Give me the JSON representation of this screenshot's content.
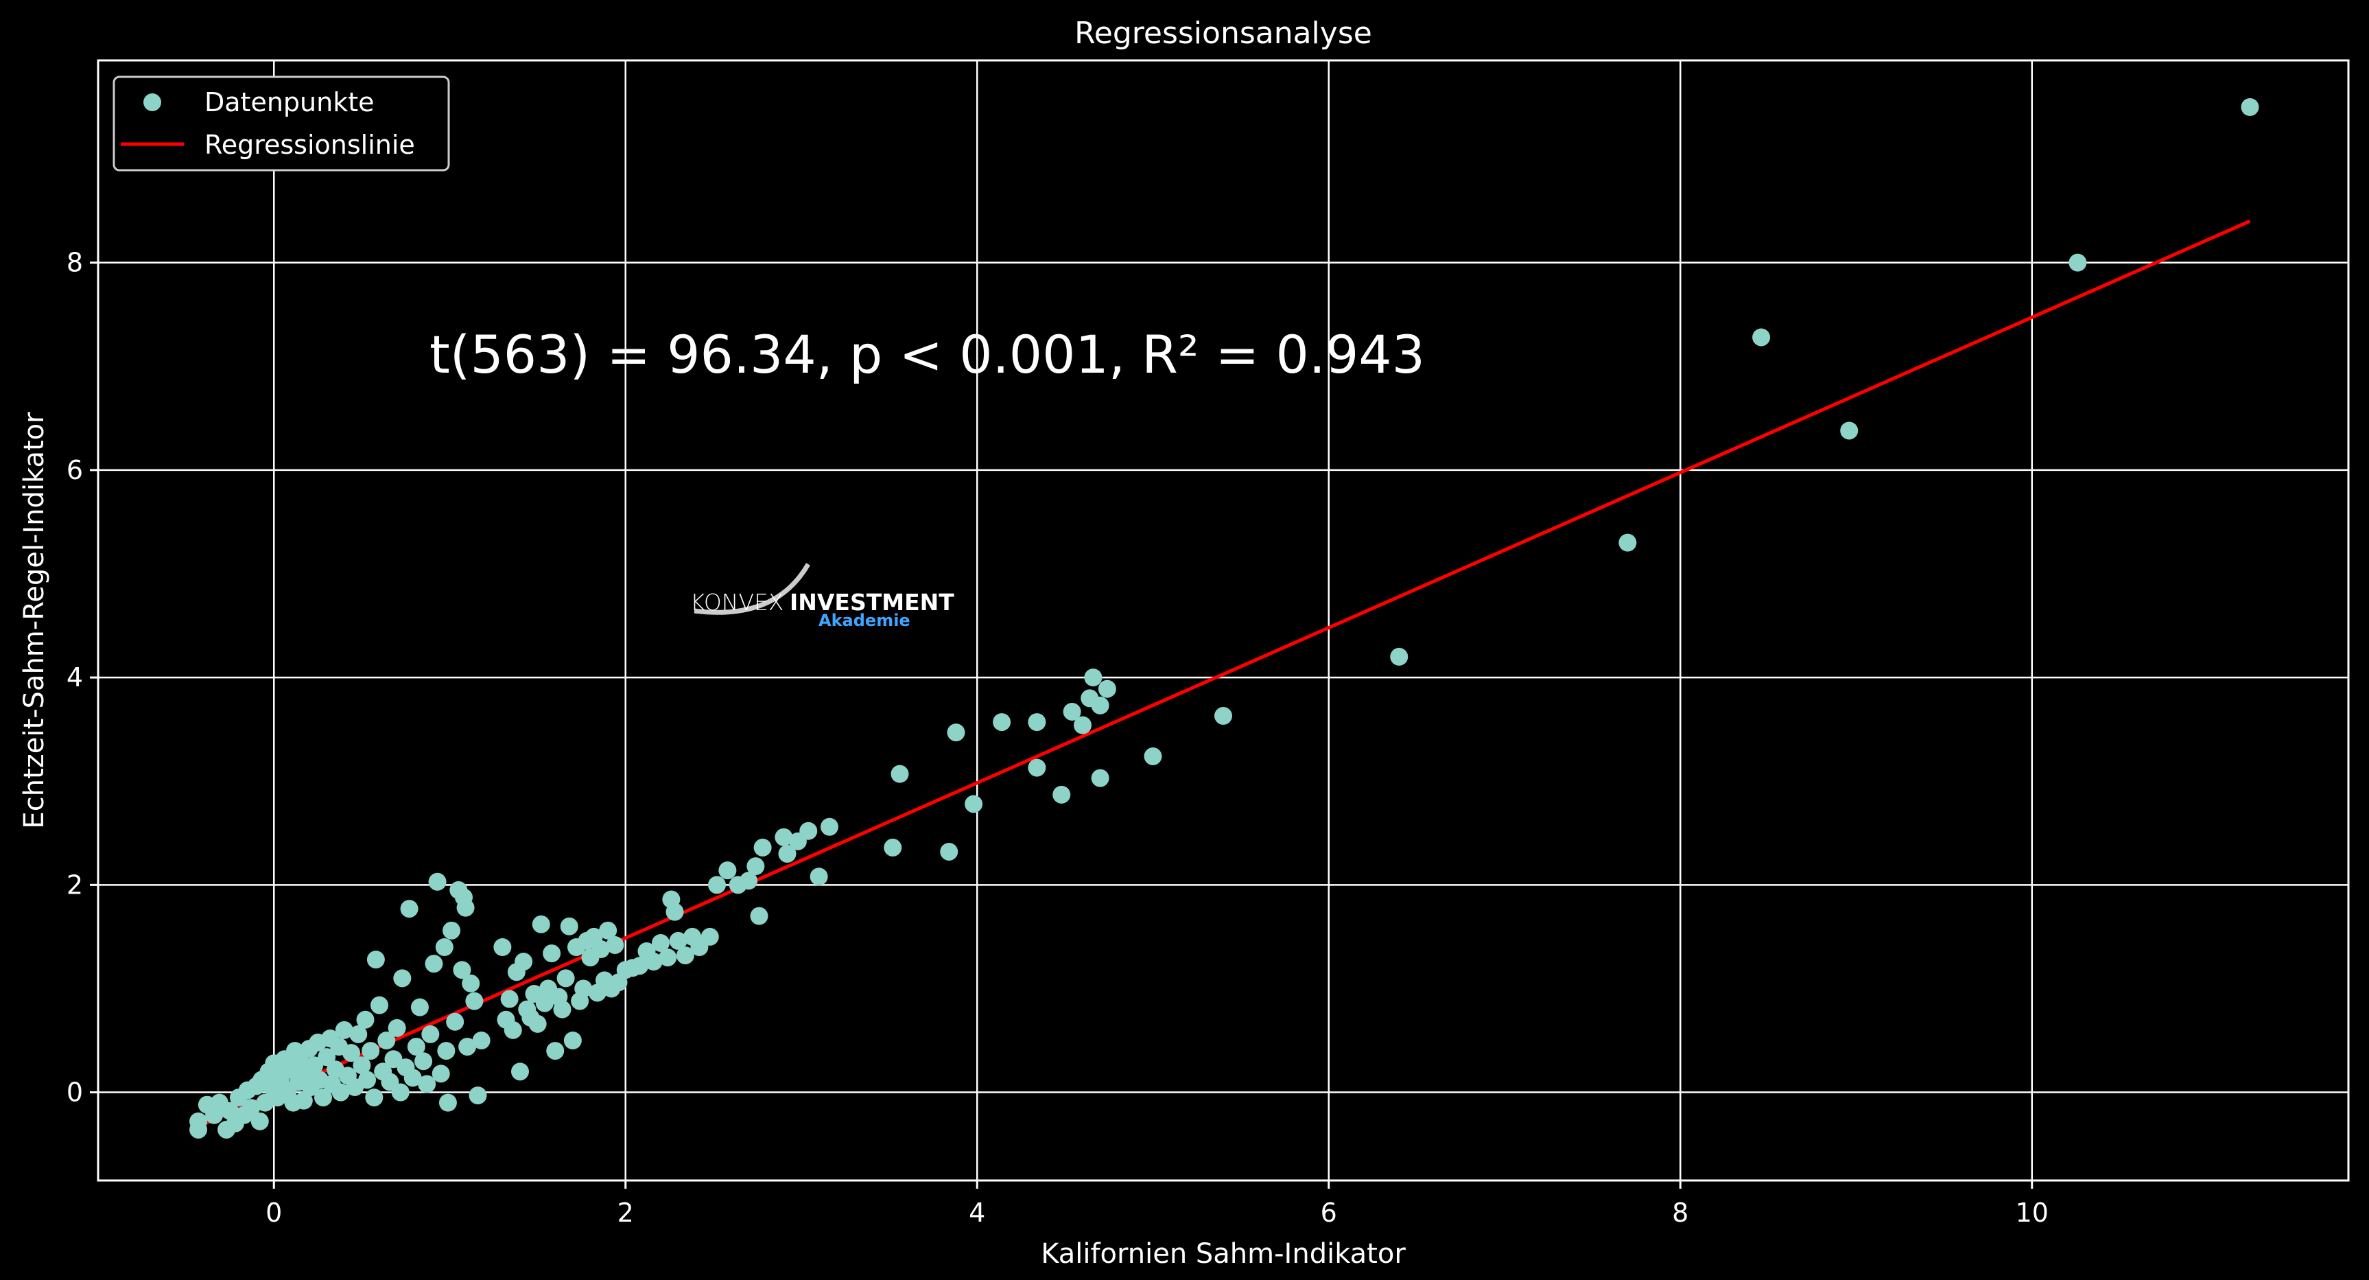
{
  "colors": {
    "background": "#000000",
    "grid": "#ffffff",
    "points": "#8dd3c7",
    "line": "#ff0000",
    "text": "#ffffff",
    "logo_accent": "#3ea6ff"
  },
  "logo": {
    "name": "konvex-investment-logo",
    "text_left": "KONVEX",
    "text_right": "INVESTMENT",
    "subtext": "Akademie"
  },
  "chart_data": {
    "type": "scatter",
    "title": "Regressionsanalyse",
    "xlabel": "Kalifornien Sahm-Indikator",
    "ylabel": "Echtzeit-Sahm-Regel-Indikator",
    "xlim": [
      -1.0,
      11.8
    ],
    "ylim": [
      -0.85,
      9.95
    ],
    "xticks": [
      0,
      2,
      4,
      6,
      8,
      10
    ],
    "yticks": [
      0,
      2,
      4,
      6,
      8
    ],
    "grid": true,
    "legend_position": "top-left",
    "annotation": "t(563) = 96.34, p < 0.001, R² = 0.943",
    "series": [
      {
        "name": "Datenpunkte",
        "kind": "scatter",
        "color": "#8dd3c7",
        "points": [
          [
            -0.43,
            -0.28
          ],
          [
            -0.43,
            -0.36
          ],
          [
            -0.38,
            -0.12
          ],
          [
            -0.34,
            -0.22
          ],
          [
            -0.31,
            -0.1
          ],
          [
            -0.27,
            -0.36
          ],
          [
            -0.25,
            -0.18
          ],
          [
            -0.22,
            -0.3
          ],
          [
            -0.2,
            -0.05
          ],
          [
            -0.17,
            -0.22
          ],
          [
            -0.15,
            0.02
          ],
          [
            -0.13,
            -0.15
          ],
          [
            -0.1,
            0.06
          ],
          [
            -0.08,
            -0.28
          ],
          [
            -0.07,
            0.12
          ],
          [
            -0.05,
            -0.1
          ],
          [
            -0.03,
            0.2
          ],
          [
            -0.01,
            0.05
          ],
          [
            0.0,
            0.28
          ],
          [
            0.02,
            -0.05
          ],
          [
            0.04,
            0.14
          ],
          [
            0.06,
            0.32
          ],
          [
            0.08,
            0.02
          ],
          [
            0.09,
            0.22
          ],
          [
            0.11,
            -0.1
          ],
          [
            0.12,
            0.4
          ],
          [
            0.14,
            0.1
          ],
          [
            0.15,
            0.3
          ],
          [
            0.17,
            -0.08
          ],
          [
            0.18,
            0.18
          ],
          [
            0.2,
            0.42
          ],
          [
            0.21,
            0.05
          ],
          [
            0.23,
            0.26
          ],
          [
            0.25,
            0.48
          ],
          [
            0.26,
            0.12
          ],
          [
            0.28,
            -0.05
          ],
          [
            0.3,
            0.34
          ],
          [
            0.32,
            0.52
          ],
          [
            0.33,
            0.08
          ],
          [
            0.35,
            0.22
          ],
          [
            0.37,
            0.44
          ],
          [
            0.38,
            0.0
          ],
          [
            0.4,
            0.6
          ],
          [
            0.42,
            0.16
          ],
          [
            0.44,
            0.38
          ],
          [
            0.46,
            0.05
          ],
          [
            0.48,
            0.56
          ],
          [
            0.5,
            0.26
          ],
          [
            0.52,
            0.7
          ],
          [
            0.53,
            0.12
          ],
          [
            0.55,
            0.4
          ],
          [
            0.57,
            -0.05
          ],
          [
            0.58,
            1.28
          ],
          [
            0.6,
            0.84
          ],
          [
            0.62,
            0.2
          ],
          [
            0.64,
            0.5
          ],
          [
            0.66,
            0.1
          ],
          [
            0.68,
            0.32
          ],
          [
            0.7,
            0.62
          ],
          [
            0.72,
            0.0
          ],
          [
            0.73,
            1.1
          ],
          [
            0.75,
            0.24
          ],
          [
            0.77,
            1.77
          ],
          [
            0.79,
            0.14
          ],
          [
            0.81,
            0.44
          ],
          [
            0.83,
            0.82
          ],
          [
            0.85,
            0.3
          ],
          [
            0.87,
            0.08
          ],
          [
            0.89,
            0.56
          ],
          [
            0.91,
            1.24
          ],
          [
            0.93,
            2.03
          ],
          [
            0.95,
            0.18
          ],
          [
            0.97,
            1.4
          ],
          [
            0.98,
            0.4
          ],
          [
            0.99,
            -0.1
          ],
          [
            1.01,
            1.56
          ],
          [
            1.03,
            0.68
          ],
          [
            1.05,
            1.95
          ],
          [
            1.07,
            1.18
          ],
          [
            1.08,
            1.88
          ],
          [
            1.09,
            1.78
          ],
          [
            1.1,
            0.44
          ],
          [
            1.12,
            1.05
          ],
          [
            1.14,
            0.88
          ],
          [
            1.16,
            -0.03
          ],
          [
            1.18,
            0.5
          ],
          [
            1.3,
            1.4
          ],
          [
            1.32,
            0.7
          ],
          [
            1.34,
            0.9
          ],
          [
            1.36,
            0.6
          ],
          [
            1.38,
            1.16
          ],
          [
            1.4,
            0.2
          ],
          [
            1.42,
            1.26
          ],
          [
            1.44,
            0.8
          ],
          [
            1.46,
            0.72
          ],
          [
            1.48,
            0.95
          ],
          [
            1.5,
            0.66
          ],
          [
            1.52,
            1.62
          ],
          [
            1.54,
            0.86
          ],
          [
            1.56,
            1.0
          ],
          [
            1.58,
            1.34
          ],
          [
            1.6,
            0.4
          ],
          [
            1.62,
            0.92
          ],
          [
            1.64,
            0.8
          ],
          [
            1.66,
            1.1
          ],
          [
            1.68,
            1.6
          ],
          [
            1.7,
            0.5
          ],
          [
            1.72,
            1.4
          ],
          [
            1.74,
            0.88
          ],
          [
            1.76,
            1.0
          ],
          [
            1.78,
            1.46
          ],
          [
            1.8,
            1.3
          ],
          [
            1.82,
            1.5
          ],
          [
            1.84,
            0.96
          ],
          [
            1.86,
            1.38
          ],
          [
            1.88,
            1.08
          ],
          [
            1.9,
            1.56
          ],
          [
            1.92,
            1.0
          ],
          [
            1.94,
            1.42
          ],
          [
            1.96,
            1.06
          ],
          [
            2.0,
            1.18
          ],
          [
            2.04,
            1.2
          ],
          [
            2.08,
            1.22
          ],
          [
            2.12,
            1.36
          ],
          [
            2.16,
            1.26
          ],
          [
            2.2,
            1.44
          ],
          [
            2.24,
            1.3
          ],
          [
            2.26,
            1.86
          ],
          [
            2.28,
            1.74
          ],
          [
            2.3,
            1.46
          ],
          [
            2.34,
            1.32
          ],
          [
            2.38,
            1.5
          ],
          [
            2.42,
            1.4
          ],
          [
            2.48,
            1.5
          ],
          [
            2.52,
            2.0
          ],
          [
            2.58,
            2.14
          ],
          [
            2.64,
            2.0
          ],
          [
            2.7,
            2.04
          ],
          [
            2.74,
            2.18
          ],
          [
            2.78,
            2.36
          ],
          [
            2.76,
            1.7
          ],
          [
            2.9,
            2.46
          ],
          [
            2.92,
            2.3
          ],
          [
            2.98,
            2.42
          ],
          [
            3.04,
            2.52
          ],
          [
            3.1,
            2.08
          ],
          [
            3.16,
            2.56
          ],
          [
            3.52,
            2.36
          ],
          [
            3.56,
            3.07
          ],
          [
            3.84,
            2.32
          ],
          [
            3.88,
            3.47
          ],
          [
            3.98,
            2.78
          ],
          [
            4.14,
            3.57
          ],
          [
            4.34,
            3.57
          ],
          [
            4.34,
            3.13
          ],
          [
            4.48,
            2.87
          ],
          [
            4.54,
            3.67
          ],
          [
            4.6,
            3.54
          ],
          [
            4.64,
            3.8
          ],
          [
            4.66,
            4.0
          ],
          [
            4.7,
            3.73
          ],
          [
            4.7,
            3.03
          ],
          [
            4.74,
            3.89
          ],
          [
            5.0,
            3.24
          ],
          [
            5.4,
            3.63
          ],
          [
            6.4,
            4.2
          ],
          [
            7.7,
            5.3
          ],
          [
            8.46,
            7.28
          ],
          [
            8.96,
            6.38
          ],
          [
            10.26,
            8.0
          ],
          [
            11.24,
            9.5
          ]
        ]
      },
      {
        "name": "Regressionslinie",
        "kind": "line",
        "color": "#ff0000",
        "x": [
          -0.43,
          11.24
        ],
        "y": [
          -0.33,
          8.4
        ]
      }
    ]
  }
}
